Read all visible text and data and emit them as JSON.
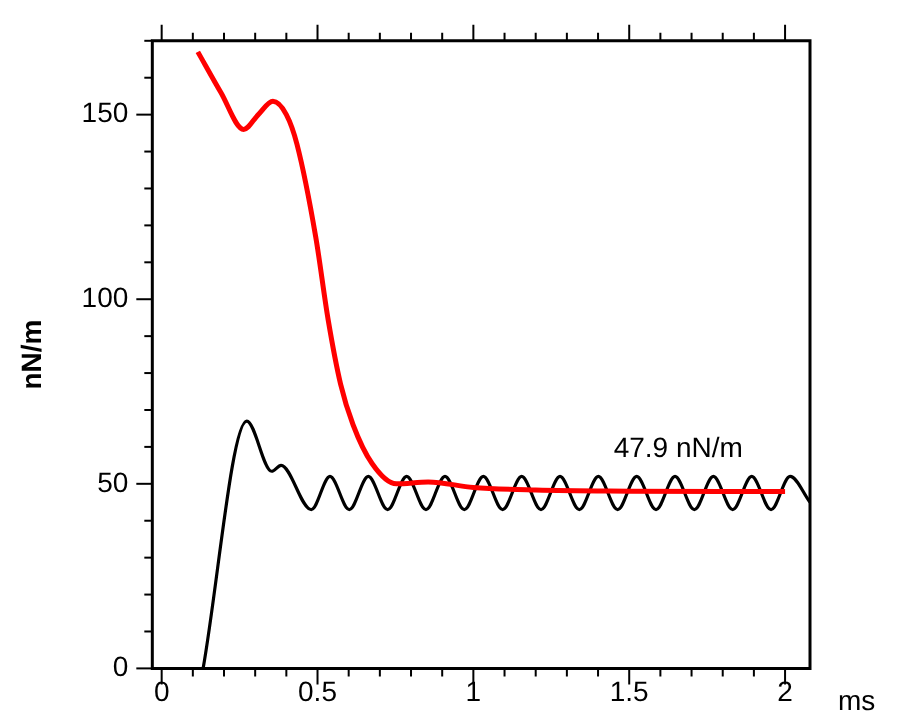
{
  "chart_data": {
    "type": "line",
    "xlabel": "ms",
    "ylabel": "nN/m",
    "xlim": [
      -0.03,
      2.08
    ],
    "xticks": [
      0,
      0.5,
      1,
      1.5,
      2
    ],
    "ylim": [
      0,
      170
    ],
    "yticks": [
      0,
      50,
      100,
      150
    ],
    "grid": false,
    "legend": false,
    "marker": "none",
    "line_style": "solid",
    "annotations": [
      {
        "text": "47.9 nN/m",
        "x": 1.45,
        "y": 47.9
      }
    ],
    "series": [
      {
        "color": "#ff0000",
        "x": [
          0.116,
          0.19,
          0.263,
          0.31,
          0.357,
          0.4,
          0.434,
          0.494,
          0.534,
          0.574,
          0.614,
          0.675,
          0.753,
          0.855,
          1.0,
          1.2,
          1.5,
          1.8,
          2.0
        ],
        "values": [
          167,
          156,
          146,
          150,
          153.6,
          150,
          142,
          117,
          94.5,
          77,
          66,
          55.5,
          50,
          50.5,
          49,
          48.3,
          48,
          47.9,
          47.9
        ]
      },
      {
        "color": "#000000",
        "x": [
          0.133,
          0.273,
          0.353,
          0.383,
          0.48,
          0.54,
          0.602,
          0.663,
          0.725,
          0.786,
          0.848,
          0.909,
          0.971,
          1.032,
          1.094,
          1.155,
          1.217,
          1.278,
          1.34,
          1.401,
          1.463,
          1.524,
          1.586,
          1.647,
          1.709,
          1.77,
          1.832,
          1.893,
          1.955,
          2.016,
          2.08
        ],
        "values": [
          0,
          67,
          53.4,
          55,
          43,
          52,
          43,
          52,
          43,
          52,
          43,
          52,
          43,
          52,
          43,
          52,
          43,
          52,
          43,
          52,
          43,
          52,
          43,
          52,
          43,
          52,
          43,
          52,
          43,
          52,
          45
        ]
      }
    ]
  }
}
